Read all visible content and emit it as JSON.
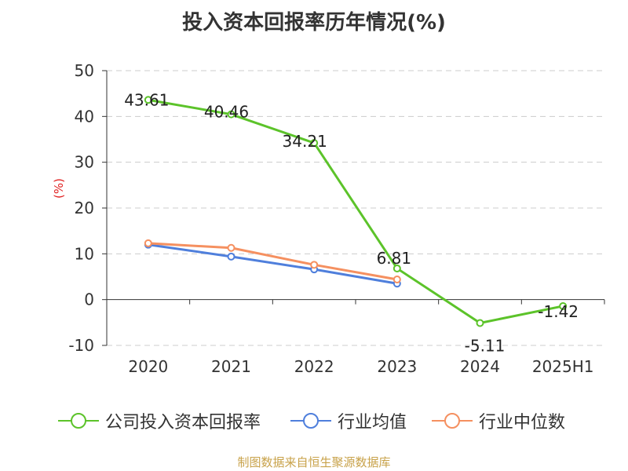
{
  "chart_data": {
    "type": "line",
    "title": "投入资本回报率历年情况(%)",
    "ylabel": "(%)",
    "categories": [
      "2020",
      "2021",
      "2022",
      "2023",
      "2024",
      "2025H1"
    ],
    "ylim": [
      -10,
      50
    ],
    "yticks": [
      -10,
      0,
      10,
      20,
      30,
      40,
      50
    ],
    "grid": true,
    "legend_position": "bottom",
    "series": [
      {
        "name": "公司投入资本回报率",
        "color": "#5cc32a",
        "values": [
          43.61,
          40.46,
          34.21,
          6.81,
          -5.11,
          -1.42
        ],
        "labels": [
          "43.61",
          "40.46",
          "34.21",
          "6.81",
          "-5.11",
          "-1.42"
        ]
      },
      {
        "name": "行业均值",
        "color": "#4f7fdc",
        "values": [
          12.0,
          9.4,
          6.6,
          3.5,
          null,
          null
        ]
      },
      {
        "name": "行业中位数",
        "color": "#f59060",
        "values": [
          12.3,
          11.3,
          7.6,
          4.4,
          null,
          null
        ]
      }
    ]
  },
  "source": "制图数据来自恒生聚源数据库"
}
